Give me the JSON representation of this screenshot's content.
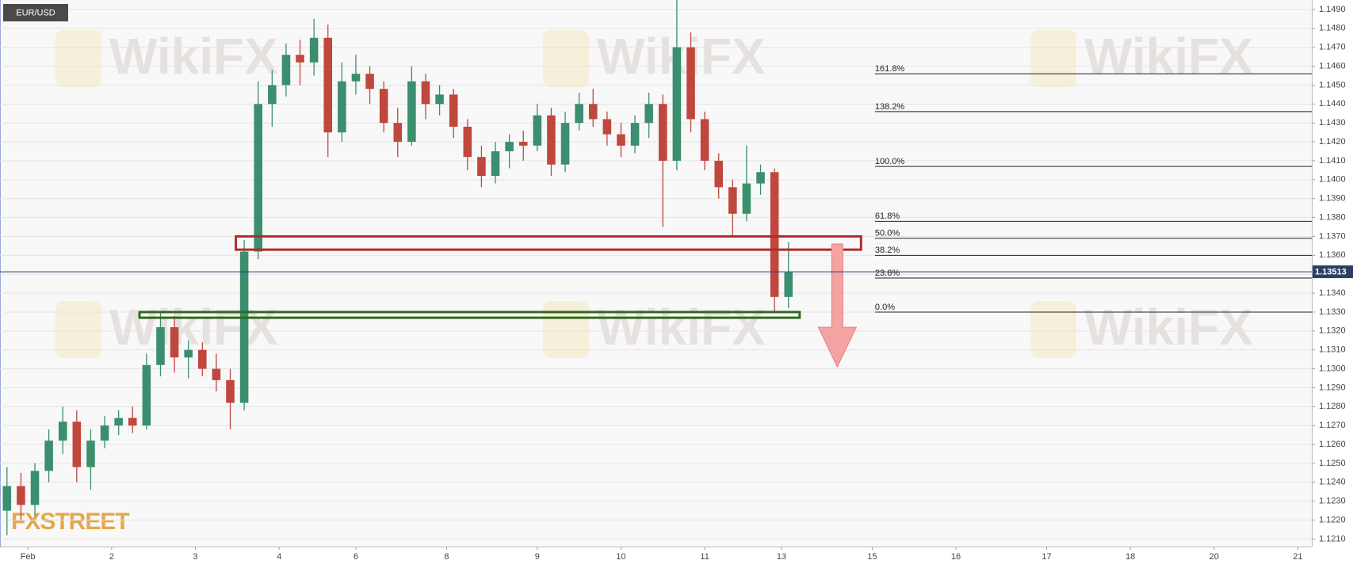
{
  "chart_data": {
    "type": "candlestick",
    "symbol": "EUR/USD",
    "watermark": "WikiFX",
    "logo": "FXSTREET",
    "up_color": "#3b8e6e",
    "down_color": "#c0473d",
    "open": [
      1.1225,
      1.1238,
      1.1228,
      1.1246,
      1.1262,
      1.1272,
      1.1248,
      1.1262,
      1.127,
      1.1274,
      1.127,
      1.1302,
      1.1322,
      1.1306,
      1.131,
      1.13,
      1.1294,
      1.1282,
      1.1362,
      1.144,
      1.145,
      1.1466,
      1.1462,
      1.1475,
      1.1425,
      1.1452,
      1.1456,
      1.1448,
      1.143,
      1.142,
      1.1452,
      1.144,
      1.1445,
      1.1428,
      1.1412,
      1.1402,
      1.1415,
      1.142,
      1.1418,
      1.1434,
      1.1408,
      1.143,
      1.144,
      1.1432,
      1.1424,
      1.1418,
      1.143,
      1.144,
      1.141,
      1.147,
      1.1432,
      1.141,
      1.1396,
      1.1382,
      1.1398,
      1.1404,
      1.1338
    ],
    "high": [
      1.1248,
      1.1245,
      1.125,
      1.1268,
      1.128,
      1.1278,
      1.1268,
      1.1275,
      1.1278,
      1.128,
      1.1308,
      1.133,
      1.1328,
      1.1315,
      1.1314,
      1.1308,
      1.13,
      1.1368,
      1.1452,
      1.1458,
      1.1472,
      1.1474,
      1.1485,
      1.1482,
      1.1462,
      1.1466,
      1.146,
      1.1452,
      1.1438,
      1.146,
      1.1456,
      1.145,
      1.1448,
      1.1432,
      1.1418,
      1.142,
      1.1424,
      1.1426,
      1.144,
      1.1438,
      1.1436,
      1.1446,
      1.1448,
      1.1436,
      1.143,
      1.1434,
      1.1446,
      1.1445,
      1.1495,
      1.1478,
      1.1436,
      1.1414,
      1.14,
      1.1418,
      1.1408,
      1.1406,
      1.1367
    ],
    "low": [
      1.1212,
      1.122,
      1.1222,
      1.124,
      1.1255,
      1.124,
      1.1236,
      1.1258,
      1.1265,
      1.1266,
      1.1268,
      1.1296,
      1.1298,
      1.1295,
      1.1296,
      1.1288,
      1.1268,
      1.1278,
      1.1358,
      1.1428,
      1.1444,
      1.145,
      1.1455,
      1.1412,
      1.142,
      1.1445,
      1.144,
      1.1425,
      1.1412,
      1.1418,
      1.1432,
      1.1434,
      1.1422,
      1.1405,
      1.1396,
      1.1398,
      1.1406,
      1.141,
      1.1415,
      1.1402,
      1.1404,
      1.1426,
      1.1428,
      1.1418,
      1.1412,
      1.1414,
      1.1422,
      1.1375,
      1.1405,
      1.1425,
      1.1405,
      1.139,
      1.137,
      1.1378,
      1.1392,
      1.133,
      1.1332
    ],
    "close": [
      1.1238,
      1.1228,
      1.1246,
      1.1262,
      1.1272,
      1.1248,
      1.1262,
      1.127,
      1.1274,
      1.127,
      1.1302,
      1.1322,
      1.1306,
      1.131,
      1.13,
      1.1294,
      1.1282,
      1.1362,
      1.144,
      1.145,
      1.1466,
      1.1462,
      1.1475,
      1.1425,
      1.1452,
      1.1456,
      1.1448,
      1.143,
      1.142,
      1.1452,
      1.144,
      1.1445,
      1.1428,
      1.1412,
      1.1402,
      1.1415,
      1.142,
      1.1418,
      1.1434,
      1.1408,
      1.143,
      1.144,
      1.1432,
      1.1424,
      1.1418,
      1.143,
      1.144,
      1.141,
      1.147,
      1.1432,
      1.141,
      1.1396,
      1.1382,
      1.1398,
      1.1404,
      1.1338,
      1.1351
    ],
    "xlim": [
      0,
      94
    ],
    "xticks": [
      {
        "value": 2,
        "label": "Feb"
      },
      {
        "value": 8,
        "label": "2"
      },
      {
        "value": 14,
        "label": "3"
      },
      {
        "value": 20,
        "label": "4"
      },
      {
        "value": 25.5,
        "label": "6"
      },
      {
        "value": 32,
        "label": "8"
      },
      {
        "value": 38.5,
        "label": "9"
      },
      {
        "value": 44.5,
        "label": "10"
      },
      {
        "value": 50.5,
        "label": "11"
      },
      {
        "value": 56,
        "label": "13"
      },
      {
        "value": 62.5,
        "label": "15"
      },
      {
        "value": 68.5,
        "label": "16"
      },
      {
        "value": 75,
        "label": "17"
      },
      {
        "value": 81,
        "label": "18"
      },
      {
        "value": 87,
        "label": "20"
      },
      {
        "value": 93,
        "label": "21"
      }
    ],
    "ylim": [
      1.1206,
      1.1495
    ],
    "yticks": [
      {
        "value": 1.121,
        "label": "1.1210"
      },
      {
        "value": 1.122,
        "label": "1.1220"
      },
      {
        "value": 1.123,
        "label": "1.1230"
      },
      {
        "value": 1.124,
        "label": "1.1240"
      },
      {
        "value": 1.125,
        "label": "1.1250"
      },
      {
        "value": 1.126,
        "label": "1.1260"
      },
      {
        "value": 1.127,
        "label": "1.1270"
      },
      {
        "value": 1.128,
        "label": "1.1280"
      },
      {
        "value": 1.129,
        "label": "1.1290"
      },
      {
        "value": 1.13,
        "label": "1.1300"
      },
      {
        "value": 1.131,
        "label": "1.1310"
      },
      {
        "value": 1.132,
        "label": "1.1320"
      },
      {
        "value": 1.133,
        "label": "1.1330"
      },
      {
        "value": 1.134,
        "label": "1.1340"
      },
      {
        "value": 1.135,
        "label": "1.1350"
      },
      {
        "value": 1.136,
        "label": "1.1360"
      },
      {
        "value": 1.137,
        "label": "1.1370"
      },
      {
        "value": 1.138,
        "label": "1.1380"
      },
      {
        "value": 1.139,
        "label": "1.1390"
      },
      {
        "value": 1.14,
        "label": "1.1400"
      },
      {
        "value": 1.141,
        "label": "1.1410"
      },
      {
        "value": 1.142,
        "label": "1.1420"
      },
      {
        "value": 1.143,
        "label": "1.1430"
      },
      {
        "value": 1.144,
        "label": "1.1440"
      },
      {
        "value": 1.145,
        "label": "1.1450"
      },
      {
        "value": 1.146,
        "label": "1.1460"
      },
      {
        "value": 1.147,
        "label": "1.1470"
      },
      {
        "value": 1.148,
        "label": "1.1480"
      },
      {
        "value": 1.149,
        "label": "1.1490"
      }
    ],
    "grid": true,
    "last_price": 1.13513,
    "fib_start": 62.7,
    "fib_levels": [
      {
        "label": "161.8%",
        "value": 1.1456
      },
      {
        "label": "138.2%",
        "value": 1.1436
      },
      {
        "label": "100.0%",
        "value": 1.1407
      },
      {
        "label": "61.8%",
        "value": 1.1378
      },
      {
        "label": "50.0%",
        "value": 1.1369
      },
      {
        "label": "38.2%",
        "value": 1.136
      },
      {
        "label": "23.6%",
        "value": 1.1348
      },
      {
        "label": "0.0%",
        "value": 1.133
      }
    ],
    "zones": [
      {
        "color": "#b52a2a",
        "x": [
          16.9,
          61.7
        ],
        "y": [
          1.1363,
          1.137
        ]
      },
      {
        "color": "#2f6a1e",
        "x": [
          10,
          57.3
        ],
        "y": [
          1.1327,
          1.133
        ]
      }
    ],
    "arrow": {
      "color": "#f4a3a3",
      "x": 60,
      "from": 1.1366,
      "to": 1.1301
    }
  }
}
